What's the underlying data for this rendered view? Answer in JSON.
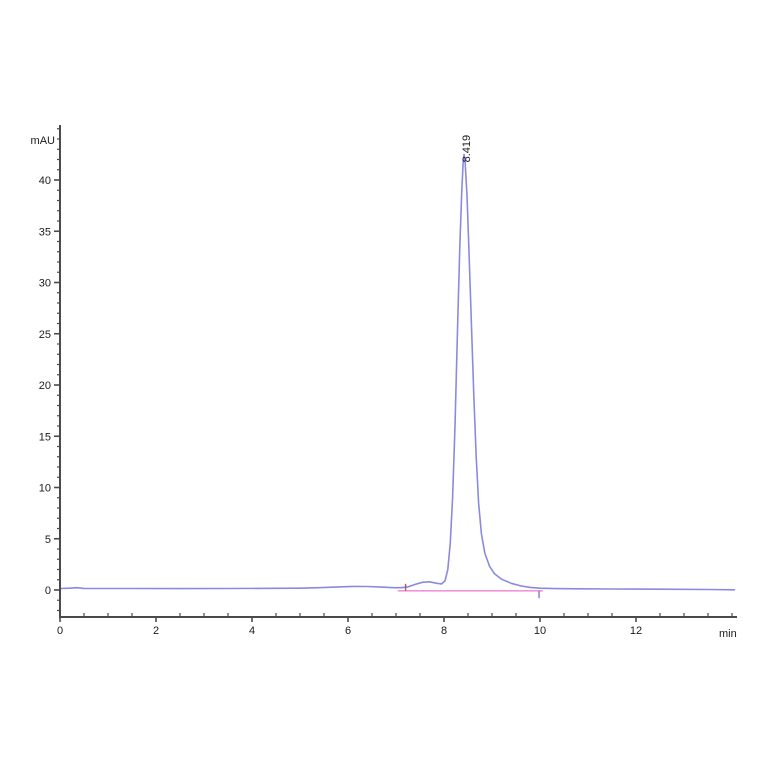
{
  "chart_data": {
    "type": "line",
    "title": "",
    "xlabel": "min",
    "ylabel": "mAU",
    "xlim": [
      0,
      14.1
    ],
    "ylim": [
      -2.6,
      45.4
    ],
    "x_major_ticks": [
      0,
      2,
      4,
      6,
      8,
      10,
      12
    ],
    "x_minor_step": 0.5,
    "y_major_ticks": [
      0,
      5,
      10,
      15,
      20,
      25,
      30,
      35,
      40
    ],
    "y_minor_step": 1,
    "grid": false,
    "legend": "none",
    "axis_color": "#4a4a4a",
    "label_color": "#1c1c1c",
    "peak": {
      "label": "8.419",
      "retention_time": 8.419,
      "height_mAU": 42.5
    },
    "series": [
      {
        "name": "uv-absorbance-trace",
        "color": "#8a8adf",
        "points": [
          [
            0.0,
            0.15
          ],
          [
            0.2,
            0.18
          ],
          [
            0.35,
            0.22
          ],
          [
            0.5,
            0.16
          ],
          [
            0.8,
            0.15
          ],
          [
            1.5,
            0.15
          ],
          [
            2.5,
            0.14
          ],
          [
            3.5,
            0.15
          ],
          [
            4.5,
            0.17
          ],
          [
            5.0,
            0.18
          ],
          [
            5.4,
            0.22
          ],
          [
            5.8,
            0.3
          ],
          [
            6.1,
            0.35
          ],
          [
            6.4,
            0.34
          ],
          [
            6.7,
            0.28
          ],
          [
            6.95,
            0.22
          ],
          [
            7.1,
            0.22
          ],
          [
            7.25,
            0.3
          ],
          [
            7.4,
            0.55
          ],
          [
            7.55,
            0.75
          ],
          [
            7.7,
            0.8
          ],
          [
            7.85,
            0.65
          ],
          [
            7.95,
            0.6
          ],
          [
            8.02,
            0.9
          ],
          [
            8.08,
            2.0
          ],
          [
            8.13,
            4.5
          ],
          [
            8.18,
            9.0
          ],
          [
            8.23,
            16.0
          ],
          [
            8.28,
            25.0
          ],
          [
            8.33,
            33.5
          ],
          [
            8.37,
            39.0
          ],
          [
            8.4,
            41.8
          ],
          [
            8.419,
            42.5
          ],
          [
            8.44,
            41.8
          ],
          [
            8.48,
            38.5
          ],
          [
            8.52,
            33.0
          ],
          [
            8.57,
            26.0
          ],
          [
            8.62,
            19.0
          ],
          [
            8.67,
            13.0
          ],
          [
            8.72,
            8.5
          ],
          [
            8.78,
            5.5
          ],
          [
            8.85,
            3.6
          ],
          [
            8.95,
            2.3
          ],
          [
            9.05,
            1.6
          ],
          [
            9.2,
            1.05
          ],
          [
            9.4,
            0.65
          ],
          [
            9.6,
            0.4
          ],
          [
            9.8,
            0.25
          ],
          [
            10.0,
            0.18
          ],
          [
            10.3,
            0.14
          ],
          [
            10.8,
            0.12
          ],
          [
            11.5,
            0.1
          ],
          [
            12.5,
            0.08
          ],
          [
            13.5,
            0.05
          ],
          [
            14.05,
            0.02
          ]
        ]
      },
      {
        "name": "integration-baseline",
        "color": "#f096d8",
        "points": [
          [
            7.05,
            -0.08
          ],
          [
            10.05,
            -0.08
          ]
        ]
      }
    ],
    "markers": [
      {
        "name": "integration-start-tick",
        "x": 7.2,
        "y1": -0.08,
        "y2": 0.6,
        "color": "#a75b5b"
      },
      {
        "name": "integration-end-tick",
        "x": 9.98,
        "y1": -0.08,
        "y2": -0.8,
        "color": "#7b7bd0"
      }
    ]
  }
}
